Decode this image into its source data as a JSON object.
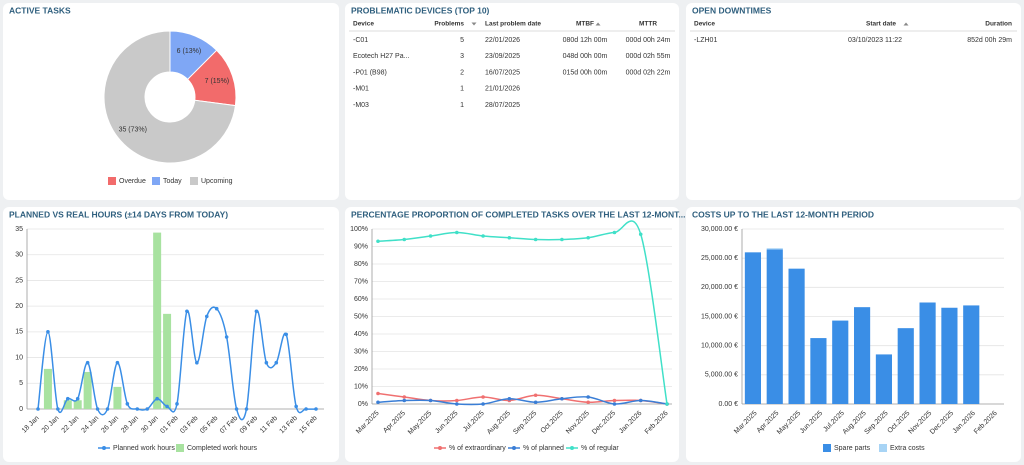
{
  "chart_data": [
    {
      "type": "pie",
      "title": "ACTIVE TASKS",
      "categories": [
        "Overdue",
        "Today",
        "Upcoming"
      ],
      "values": [
        7,
        6,
        35
      ],
      "value_labels": [
        "7 (15%)",
        "6 (13%)",
        "35 (73%)"
      ],
      "colors": [
        "#f26b6b",
        "#7fa7f5",
        "#c9c9c9"
      ],
      "donut": true
    },
    {
      "type": "combo",
      "title": "PLANNED VS REAL HOURS (±14 DAYS FROM TODAY)",
      "categories": [
        "18 Jan",
        null,
        "20 Jan",
        null,
        "22 Jan",
        null,
        "24 Jan",
        null,
        "26 Jan",
        null,
        "28 Jan",
        null,
        "30 Jan",
        null,
        "01 Feb",
        null,
        "03 Feb",
        null,
        "05 Feb",
        null,
        "07 Feb",
        null,
        "09 Feb",
        null,
        "11 Feb",
        null,
        "13 Feb",
        null,
        "15 Feb"
      ],
      "series": [
        {
          "name": "Planned work hours",
          "color": "#3a8ee6",
          "kind": "line",
          "values": [
            0,
            15,
            0,
            2,
            2,
            9,
            0,
            0,
            9,
            1,
            0,
            0,
            2,
            0.5,
            1,
            19,
            9,
            18,
            19.5,
            14,
            0,
            0,
            19,
            9,
            9,
            14.5,
            0.5,
            0,
            0
          ]
        },
        {
          "name": "Completed work hours",
          "color": "#a8e2a0",
          "kind": "bar",
          "values": [
            0,
            7.8,
            0,
            1.7,
            1.7,
            7.2,
            0,
            0,
            4.3,
            0,
            0,
            0,
            34.3,
            18.5,
            0,
            0,
            0,
            0,
            0,
            0,
            0,
            0,
            0,
            0,
            0,
            0,
            0,
            0,
            0
          ]
        }
      ],
      "ylim": [
        0,
        35
      ],
      "yticks": [
        0,
        5,
        10,
        15,
        20,
        25,
        30,
        35
      ],
      "grid": true
    },
    {
      "type": "line",
      "title": "PERCENTAGE PROPORTION OF COMPLETED TASKS OVER THE LAST 12-MONT...",
      "categories": [
        "Mar.2025",
        "Apr.2025",
        "May.2025",
        "Jun.2025",
        "Jul.2025",
        "Aug.2025",
        "Sep.2025",
        "Oct.2025",
        "Nov.2025",
        "Dec.2025",
        "Jan.2026",
        "Feb.2026"
      ],
      "series": [
        {
          "name": "% of extraordinary",
          "color": "#f07070",
          "values": [
            6,
            4,
            2,
            2,
            4,
            2,
            5,
            3,
            1,
            2,
            2,
            0
          ]
        },
        {
          "name": "% of planned",
          "color": "#3a7ed6",
          "values": [
            1,
            2,
            2,
            0,
            0,
            3,
            1,
            3,
            4,
            0,
            2,
            0
          ]
        },
        {
          "name": "% of regular",
          "color": "#40e0c8",
          "values": [
            93,
            94,
            96,
            98,
            96,
            95,
            94,
            94,
            95,
            98,
            97,
            0
          ]
        }
      ],
      "ylim": [
        0,
        100
      ],
      "yticks": [
        {
          "value": 0,
          "label": "0%"
        },
        {
          "value": 10,
          "label": "10%"
        },
        {
          "value": 20,
          "label": "20%"
        },
        {
          "value": 30,
          "label": "30%"
        },
        {
          "value": 40,
          "label": "40%"
        },
        {
          "value": 50,
          "label": "50%"
        },
        {
          "value": 60,
          "label": "60%"
        },
        {
          "value": 70,
          "label": "70%"
        },
        {
          "value": 80,
          "label": "80%"
        },
        {
          "value": 90,
          "label": "90%"
        },
        {
          "value": 100,
          "label": "100%"
        }
      ],
      "grid": true
    },
    {
      "type": "bar",
      "title": "COSTS UP TO THE LAST 12-MONTH PERIOD",
      "stacked": true,
      "categories": [
        "Mar.2025",
        "Apr.2025",
        "May.2025",
        "Jun.2025",
        "Jul.2025",
        "Aug.2025",
        "Sep.2025",
        "Oct.2025",
        "Nov.2025",
        "Dec.2025",
        "Jan.2026",
        "Feb.2026"
      ],
      "series": [
        {
          "name": "Spare parts",
          "color": "#3a8ee6",
          "values": [
            26000,
            26500,
            23200,
            11300,
            14300,
            16600,
            8500,
            13000,
            17400,
            16500,
            16900,
            0
          ]
        },
        {
          "name": "Extra costs",
          "color": "#a8d4f5",
          "values": [
            0,
            200,
            0,
            0,
            0,
            0,
            0,
            0,
            0,
            0,
            0,
            0
          ]
        }
      ],
      "ylim": [
        0,
        30000
      ],
      "yticks": [
        {
          "value": 0,
          "label": "0.00 €"
        },
        {
          "value": 5000,
          "label": "5,000.00 €"
        },
        {
          "value": 10000,
          "label": "10,000.00 €"
        },
        {
          "value": 15000,
          "label": "15,000.00 €"
        },
        {
          "value": 20000,
          "label": "20,000.00 €"
        },
        {
          "value": 25000,
          "label": "25,000.00 €"
        },
        {
          "value": 30000,
          "label": "30,000.00 €"
        }
      ],
      "grid": true
    }
  ],
  "tables": [
    {
      "title": "PROBLEMATIC DEVICES (TOP 10)",
      "columns": [
        "Device",
        "Problems",
        "Last problem date",
        "MTBF",
        "MTTR"
      ],
      "sorted": [
        {
          "column": 1,
          "direction": "desc"
        },
        {
          "column": 3,
          "direction": "asc"
        }
      ],
      "rows": [
        [
          "-C01",
          "5",
          "22/01/2026",
          "080d 12h 00m",
          "000d 00h 24m"
        ],
        [
          "Ecotech H27 Pa...",
          "3",
          "23/09/2025",
          "048d 00h 00m",
          "000d 02h 55m"
        ],
        [
          "-P01 (B98)",
          "2",
          "16/07/2025",
          "015d 00h 00m",
          "000d 02h 22m"
        ],
        [
          "-M01",
          "1",
          "21/01/2026",
          null,
          null
        ],
        [
          "-M03",
          "1",
          "28/07/2025",
          null,
          null
        ]
      ]
    },
    {
      "title": "OPEN DOWNTIMES",
      "columns": [
        "Device",
        "Start date",
        "Duration"
      ],
      "sorted": [
        {
          "column": 1,
          "direction": "asc"
        }
      ],
      "rows": [
        [
          "-LZH01",
          "03/10/2023 11:22",
          "852d 00h 29m"
        ]
      ]
    }
  ]
}
